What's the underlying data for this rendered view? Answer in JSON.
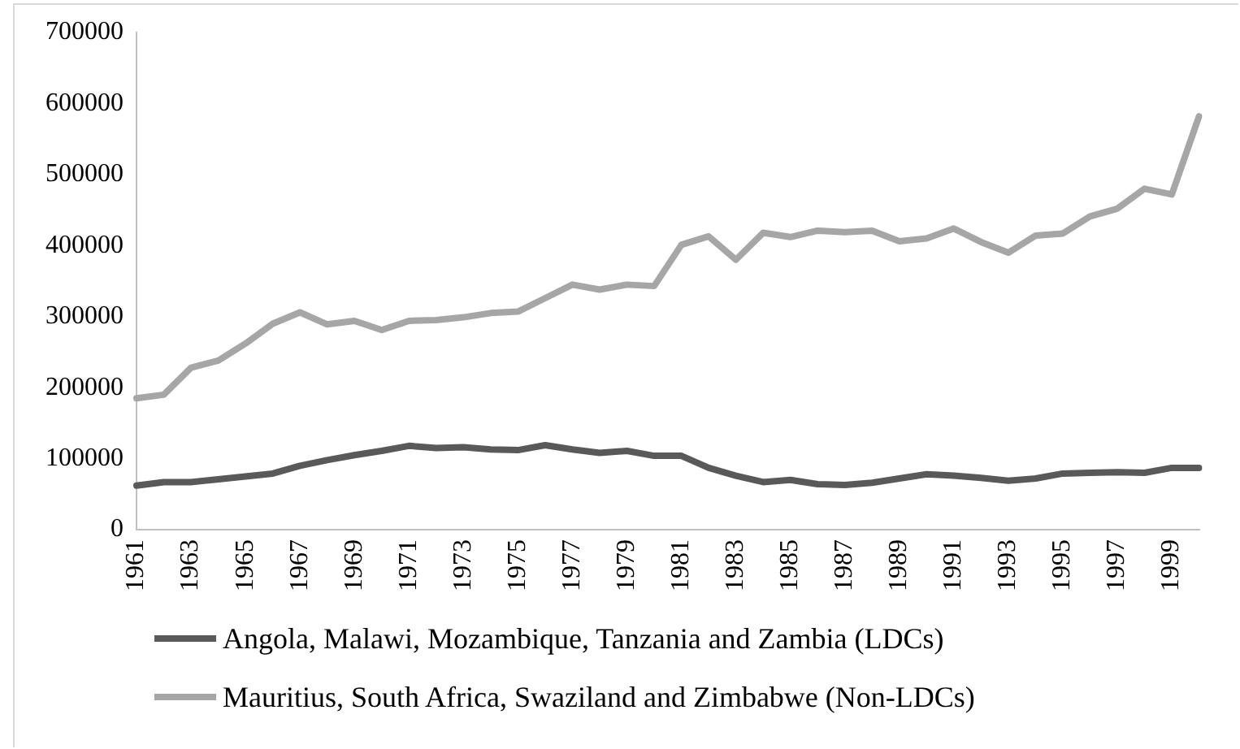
{
  "chart_data": {
    "type": "line",
    "categories": [
      "1961",
      null,
      "1963",
      null,
      "1965",
      null,
      "1967",
      null,
      "1969",
      null,
      "1971",
      null,
      "1973",
      null,
      "1975",
      null,
      "1977",
      null,
      "1979",
      null,
      "1981",
      null,
      "1983",
      null,
      "1985",
      null,
      "1987",
      null,
      "1989",
      null,
      "1991",
      null,
      "1993",
      null,
      "1995",
      null,
      "1997",
      null,
      "1999",
      null
    ],
    "series": [
      {
        "name": "Angola, Malawi, Mozambique, Tanzania and Zambia (LDCs)",
        "color": "#595959",
        "values": [
          62000,
          67000,
          67000,
          71000,
          75000,
          79000,
          90000,
          98000,
          105000,
          111000,
          118000,
          115000,
          116000,
          113000,
          112000,
          119000,
          113000,
          108000,
          111000,
          104000,
          104000,
          87000,
          76000,
          67000,
          70000,
          64000,
          63000,
          66000,
          72000,
          78000,
          76000,
          73000,
          69000,
          72000,
          79000,
          80000,
          81000,
          80000,
          87000,
          87000
        ]
      },
      {
        "name": "Mauritius, South Africa, Swaziland and Zimbabwe (Non-LDCs)",
        "color": "#a6a6a6",
        "values": [
          185000,
          190000,
          228000,
          238000,
          262000,
          290000,
          306000,
          289000,
          294000,
          281000,
          294000,
          295000,
          299000,
          305000,
          307000,
          326000,
          345000,
          338000,
          345000,
          343000,
          401000,
          413000,
          380000,
          418000,
          412000,
          421000,
          419000,
          421000,
          406000,
          410000,
          424000,
          405000,
          390000,
          414000,
          417000,
          441000,
          452000,
          480000,
          472000,
          582000
        ]
      }
    ],
    "ylim": [
      0,
      700000
    ],
    "yticks": [
      0,
      100000,
      200000,
      300000,
      400000,
      500000,
      600000,
      700000
    ],
    "grid": false,
    "legend": "bottom"
  }
}
